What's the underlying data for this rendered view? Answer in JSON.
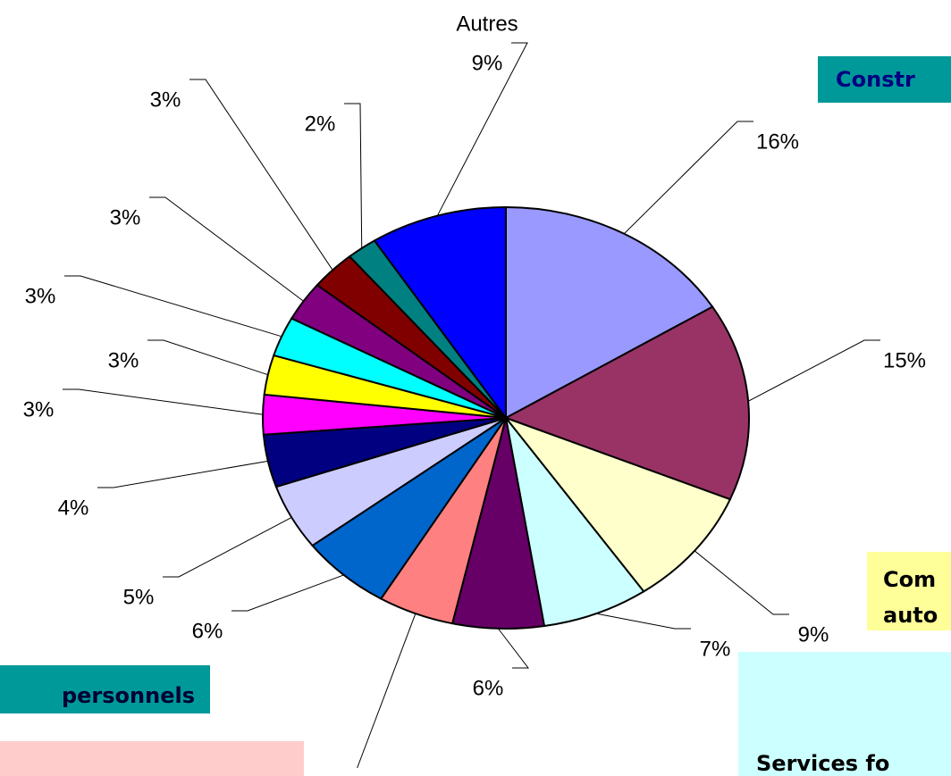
{
  "chart_data": {
    "type": "pie",
    "categories": [
      null,
      null,
      null,
      null,
      null,
      null,
      null,
      null,
      null,
      null,
      null,
      null,
      null,
      null,
      null,
      "Autres"
    ],
    "values": [
      16,
      15,
      9,
      7,
      6,
      5,
      6,
      5,
      4,
      3,
      3,
      3,
      3,
      3,
      2,
      9
    ],
    "value_labels": [
      "16%",
      "15%",
      "9%",
      "7%",
      "6%",
      null,
      "6%",
      "5%",
      "4%",
      "3%",
      "3%",
      "3%",
      "3%",
      "3%",
      "2%",
      "9%"
    ],
    "colors": [
      "#9999ff",
      "#993366",
      "#ffffcc",
      "#ccffff",
      "#660066",
      "#ff8080",
      "#0066cc",
      "#ccccff",
      "#000080",
      "#ff00ff",
      "#ffff00",
      "#00ffff",
      "#800080",
      "#800000",
      "#008080",
      "#0000ff"
    ],
    "annotations": [
      {
        "lines": [
          "Constr"
        ],
        "color": "#009999",
        "text_color": "#000080"
      },
      {
        "lines": [
          "Com",
          "auto"
        ],
        "color": "#ffff99",
        "text_color": "#000000"
      },
      {
        "lines": [
          "Services fo"
        ],
        "color": "#ccffff",
        "text_color": "#000000"
      },
      {
        "lines": [
          "personnels"
        ],
        "color": "#009999",
        "text_color": "#000033"
      },
      {
        "lines": [],
        "color": "#ffcccc",
        "text_color": "#000000"
      }
    ]
  }
}
